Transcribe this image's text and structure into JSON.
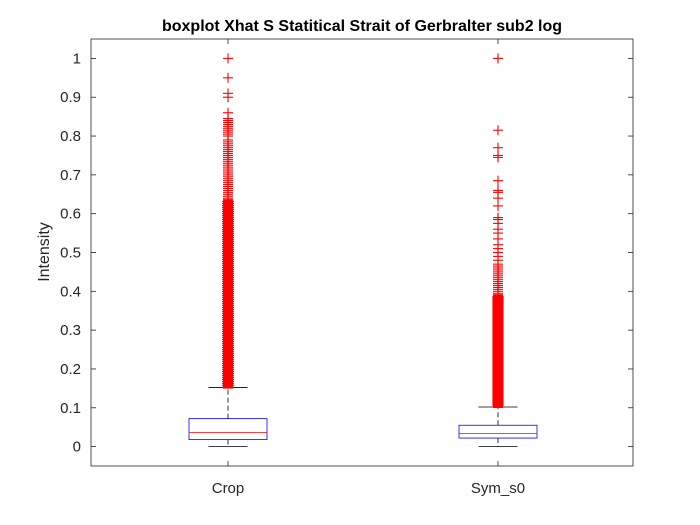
{
  "chart_data": {
    "type": "boxplot",
    "title": "boxplot Xhat S Statitical Strait of Gerbralter sub2 log",
    "xlabel": "",
    "ylabel": "Intensity",
    "ylim": [
      -0.05,
      1.05
    ],
    "yticks": [
      "0",
      "0.1",
      "0.2",
      "0.3",
      "0.4",
      "0.5",
      "0.6",
      "0.7",
      "0.8",
      "0.9",
      "1"
    ],
    "categories": [
      "Crop",
      "Sym_s0"
    ],
    "grid": false,
    "colors": {
      "box": "#0000ff",
      "median": "#ff0000",
      "whisker": "#000000",
      "outlier": "#ff0000",
      "axis": "#262626"
    },
    "boxes": [
      {
        "category": "Crop",
        "min": 0,
        "q1": 0.018,
        "median": 0.036,
        "q3": 0.072,
        "max": 0.152,
        "outlier_dense_range": [
          0.152,
          0.635
        ],
        "outliers": [
          0.64,
          0.645,
          0.65,
          0.655,
          0.66,
          0.665,
          0.67,
          0.675,
          0.68,
          0.685,
          0.69,
          0.695,
          0.7,
          0.705,
          0.71,
          0.715,
          0.72,
          0.725,
          0.73,
          0.735,
          0.74,
          0.745,
          0.75,
          0.755,
          0.76,
          0.765,
          0.77,
          0.775,
          0.78,
          0.785,
          0.79,
          0.8,
          0.805,
          0.81,
          0.815,
          0.82,
          0.825,
          0.83,
          0.835,
          0.84,
          0.845,
          0.86,
          0.9,
          0.91,
          0.95,
          1.0
        ]
      },
      {
        "category": "Sym_s0",
        "min": 0,
        "q1": 0.022,
        "median": 0.034,
        "q3": 0.055,
        "max": 0.102,
        "outlier_dense_range": [
          0.102,
          0.39
        ],
        "outliers": [
          0.395,
          0.4,
          0.405,
          0.41,
          0.415,
          0.42,
          0.425,
          0.43,
          0.435,
          0.44,
          0.445,
          0.45,
          0.455,
          0.46,
          0.465,
          0.47,
          0.48,
          0.49,
          0.5,
          0.51,
          0.52,
          0.535,
          0.55,
          0.56,
          0.575,
          0.585,
          0.59,
          0.62,
          0.64,
          0.655,
          0.66,
          0.685,
          0.745,
          0.75,
          0.77,
          0.815,
          1.0
        ]
      }
    ]
  }
}
